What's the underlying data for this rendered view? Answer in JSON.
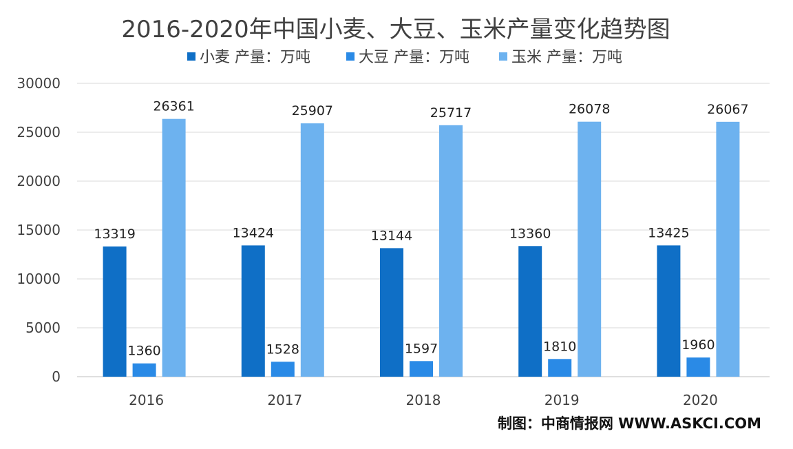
{
  "chart_data": {
    "type": "bar",
    "title": "2016-2020年中国小麦、大豆、玉米产量变化趋势图",
    "categories": [
      "2016",
      "2017",
      "2018",
      "2019",
      "2020"
    ],
    "series": [
      {
        "name": "小麦 产量：万吨",
        "color": "#0f6fc6",
        "values": [
          13319,
          13424,
          13144,
          13360,
          13425
        ]
      },
      {
        "name": "大豆 产量：万吨",
        "color": "#2a8ae6",
        "values": [
          1360,
          1528,
          1597,
          1810,
          1960
        ]
      },
      {
        "name": "玉米 产量：万吨",
        "color": "#6db2ef",
        "values": [
          26361,
          25907,
          25717,
          26078,
          26067
        ]
      }
    ],
    "ylim": [
      0,
      30000
    ],
    "yticks": [
      0,
      5000,
      10000,
      15000,
      20000,
      25000,
      30000
    ],
    "grid": true,
    "legend": "top",
    "xlabel": "",
    "ylabel": ""
  },
  "source_credit": "制图：中商情报网 WWW.ASKCI.COM"
}
